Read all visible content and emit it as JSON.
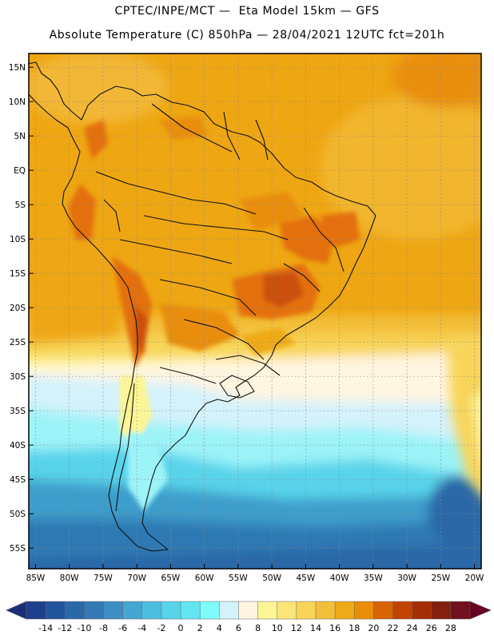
{
  "title": {
    "line1": "CPTEC/INPE/MCT —  Eta Model 15km — GFS",
    "line2": "Absolute Temperature (C) 850hPa — 28/04/2021 12UTC fct=201h"
  },
  "axes": {
    "lat_labels": [
      "15N",
      "10N",
      "5N",
      "EQ",
      "5S",
      "10S",
      "15S",
      "20S",
      "25S",
      "30S",
      "35S",
      "40S",
      "45S",
      "50S",
      "55S"
    ],
    "lat_values": [
      15,
      10,
      5,
      0,
      -5,
      -10,
      -15,
      -20,
      -25,
      -30,
      -35,
      -40,
      -45,
      -50,
      -55
    ],
    "lon_labels": [
      "85W",
      "80W",
      "75W",
      "70W",
      "65W",
      "60W",
      "55W",
      "50W",
      "45W",
      "40W",
      "35W",
      "30W",
      "25W",
      "20W"
    ],
    "lon_values": [
      -85,
      -80,
      -75,
      -70,
      -65,
      -60,
      -55,
      -50,
      -45,
      -40,
      -35,
      -30,
      -25,
      -20
    ],
    "lat_range": [
      -58,
      17
    ],
    "lon_range": [
      -86,
      -19
    ]
  },
  "colorbar": {
    "labels": [
      "-14",
      "-12",
      "-10",
      "-8",
      "-6",
      "-4",
      "-2",
      "0",
      "2",
      "4",
      "6",
      "8",
      "10",
      "12",
      "14",
      "16",
      "18",
      "20",
      "22",
      "24",
      "26",
      "28"
    ],
    "colors": [
      "#1e3f8c",
      "#22549c",
      "#2a68aa",
      "#3479b6",
      "#3d8ec4",
      "#45a6d2",
      "#4ebedf",
      "#58d3ea",
      "#63e5f2",
      "#7ffbfb",
      "#d4f2fb",
      "#fff5e0",
      "#fdf595",
      "#fbe576",
      "#f8d458",
      "#f3bf3a",
      "#eeaa18",
      "#e98d0b",
      "#d86406",
      "#c24404",
      "#a52e04",
      "#832010",
      "#72101f"
    ],
    "under_color": "#1b2e7a",
    "over_color": "#6a0022"
  },
  "colors": {
    "warm": "#eea613",
    "hot": "#e3700a",
    "hottest": "#cb4f07",
    "cool_pale": "#fdf5c0",
    "cold_bands": [
      "#d4f2fb",
      "#9cf3f8",
      "#58d3ea",
      "#3d9dcb",
      "#2f79b4",
      "#2a67a8"
    ]
  }
}
